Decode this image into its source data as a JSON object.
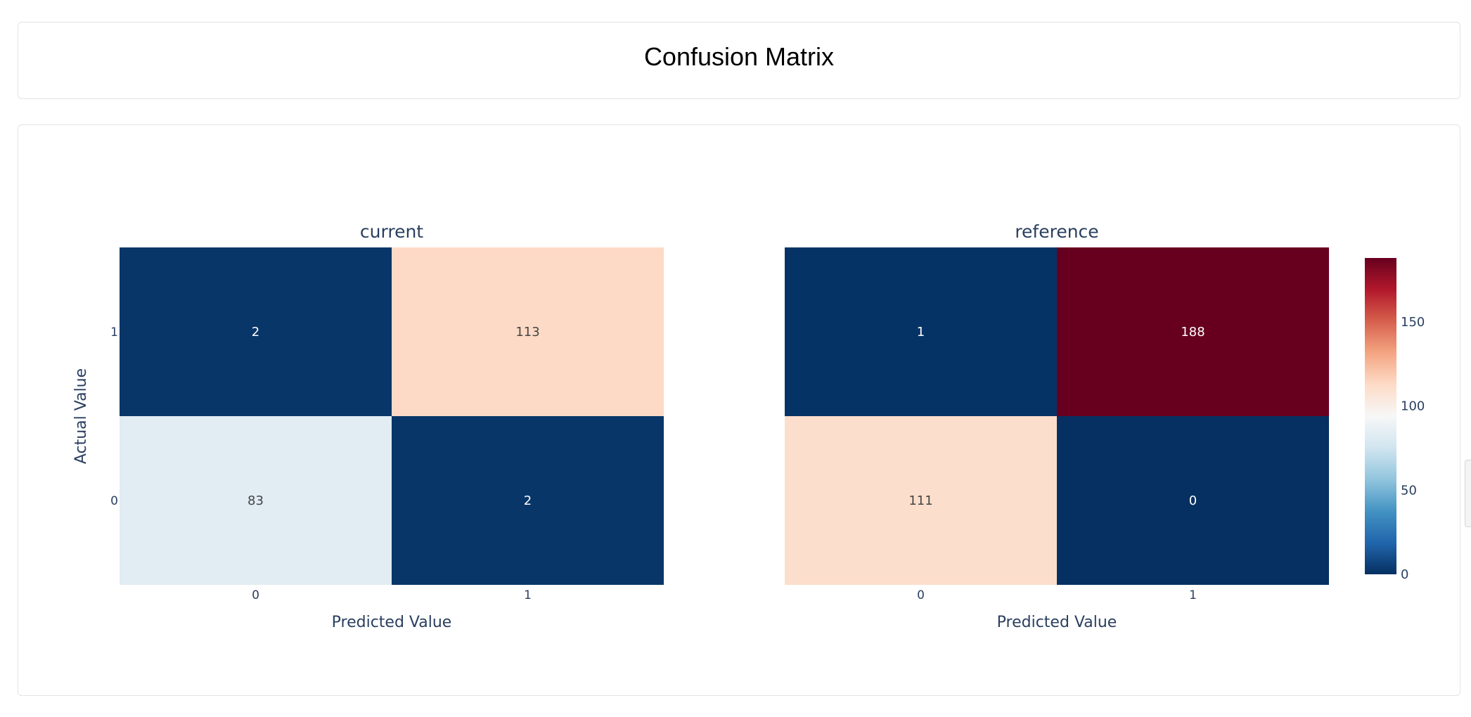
{
  "page": {
    "title": "Confusion Matrix"
  },
  "chart_data": {
    "type": "heatmap",
    "colorscale": "RdBu_r",
    "zmin": 0,
    "zmax": 188,
    "colorbar_ticks": [
      0,
      50,
      100,
      150
    ],
    "colorbar_tick_labels": [
      "0",
      "50",
      "100",
      "150"
    ],
    "ylabel": "Actual Value",
    "panels": [
      {
        "title": "current",
        "xlabel": "Predicted Value",
        "x_categories": [
          "0",
          "1"
        ],
        "y_categories": [
          "0",
          "1"
        ],
        "z": [
          [
            83,
            2
          ],
          [
            2,
            113
          ]
        ]
      },
      {
        "title": "reference",
        "xlabel": "Predicted Value",
        "x_categories": [
          "0",
          "1"
        ],
        "y_categories": [
          "0",
          "1"
        ],
        "z": [
          [
            111,
            0
          ],
          [
            1,
            188
          ]
        ]
      }
    ]
  }
}
